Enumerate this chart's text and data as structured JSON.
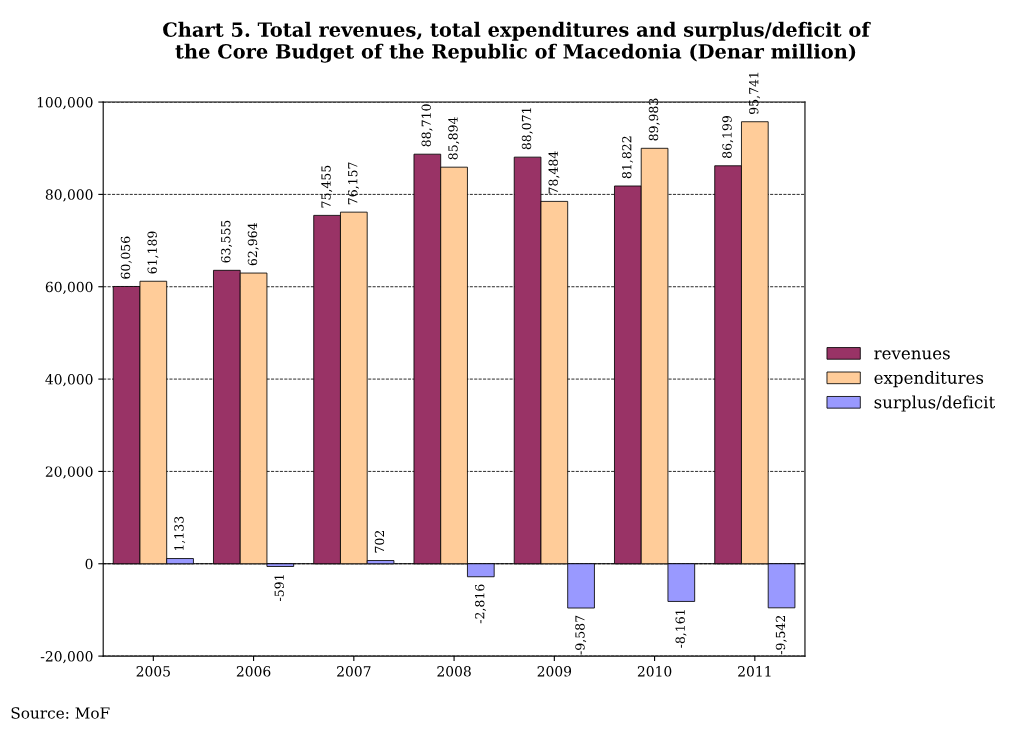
{
  "chart_data": {
    "type": "bar",
    "title": "Chart 5. Total revenues, total expenditures and surplus/deficit of\nthe Core Budget of the Republic of Macedonia (Denar million)",
    "categories": [
      "2005",
      "2006",
      "2007",
      "2008",
      "2009",
      "2010",
      "2011"
    ],
    "series": [
      {
        "name": "revenues",
        "color": "#993366",
        "values": [
          60056,
          63555,
          75455,
          88710,
          88071,
          81822,
          86199
        ],
        "value_labels": [
          "60,056",
          "63,555",
          "75,455",
          "88,710",
          "88,071",
          "81,822",
          "86,199"
        ]
      },
      {
        "name": "expenditures",
        "color": "#ffcc99",
        "values": [
          61189,
          62964,
          76157,
          85894,
          78484,
          89983,
          95741
        ],
        "value_labels": [
          "61,189",
          "62,964",
          "76,157",
          "85,894",
          "78,484",
          "89,983",
          "95,741"
        ]
      },
      {
        "name": "surplus/deficit",
        "color": "#9999ff",
        "values": [
          1133,
          -591,
          702,
          -2816,
          -9587,
          -8161,
          -9542
        ],
        "value_labels": [
          "1,133",
          "-591",
          "702",
          "-2,816",
          "-9,587",
          "-8,161",
          "-9,542"
        ]
      }
    ],
    "ylim": [
      -20000,
      100000
    ],
    "yticks": [
      {
        "value": -20000,
        "label": "-20,000"
      },
      {
        "value": 0,
        "label": "0"
      },
      {
        "value": 20000,
        "label": "20,000"
      },
      {
        "value": 40000,
        "label": "40,000"
      },
      {
        "value": 60000,
        "label": "60,000"
      },
      {
        "value": 80000,
        "label": "80,000"
      },
      {
        "value": 100000,
        "label": "100,000"
      }
    ],
    "grid": "y",
    "legend": "right",
    "annotations": [
      "Source: MoF"
    ]
  }
}
